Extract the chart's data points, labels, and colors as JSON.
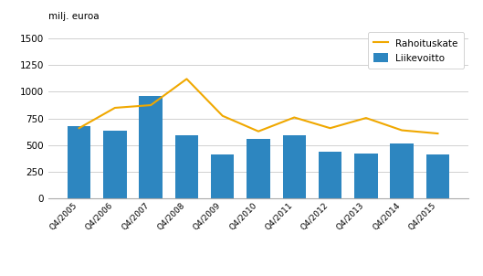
{
  "categories": [
    "Q4/2005",
    "Q4/2006",
    "Q4/2007",
    "Q4/2008",
    "Q4/2009",
    "Q4/2010",
    "Q4/2011",
    "Q4/2012",
    "Q4/2013",
    "Q4/2014",
    "Q4/2015"
  ],
  "liikevoitto": [
    680,
    640,
    960,
    590,
    410,
    555,
    590,
    440,
    420,
    515,
    415
  ],
  "rahoituskate": [
    660,
    850,
    875,
    1120,
    775,
    630,
    760,
    660,
    755,
    640,
    610
  ],
  "bar_color": "#2d86c0",
  "line_color": "#f0a800",
  "ylabel": "milj. euroa",
  "ylim": [
    0,
    1600
  ],
  "yticks": [
    0,
    250,
    500,
    750,
    1000,
    1250,
    1500
  ],
  "legend_liikevoitto": "Liikevoitto",
  "legend_rahoituskate": "Rahoituskate",
  "grid_color": "#d0d0d0"
}
